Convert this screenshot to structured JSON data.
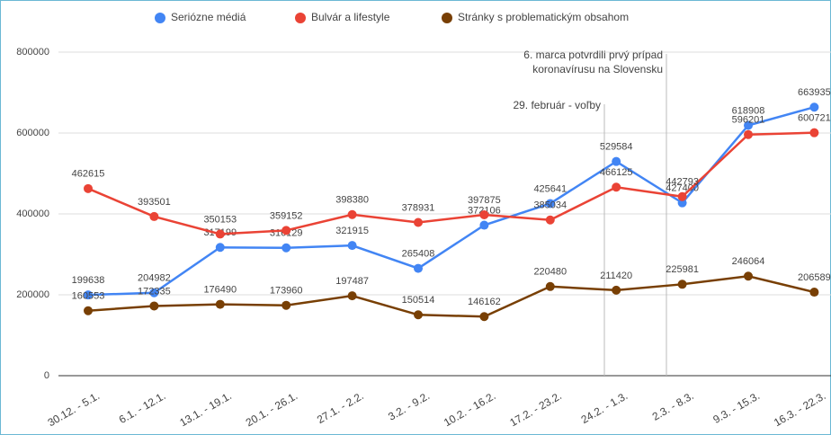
{
  "chart_data": {
    "type": "line",
    "categories": [
      "30.12. - 5.1.",
      "6.1. - 12.1.",
      "13.1. - 19.1.",
      "20.1. - 26.1.",
      "27.1. - 2.2.",
      "3.2. - 9.2.",
      "10.2. - 16.2.",
      "17.2. - 23.2.",
      "24.2. - 1.3.",
      "2.3. - 8.3.",
      "9.3. - 15.3.",
      "16.3. - 22.3."
    ],
    "series": [
      {
        "name": "Seriózne médiá",
        "color": "#4285f4",
        "values": [
          199638,
          204982,
          317199,
          316129,
          321915,
          265408,
          372106,
          425641,
          529584,
          427400,
          618908,
          663935
        ]
      },
      {
        "name": "Bulvár a lifestyle",
        "color": "#ea4335",
        "values": [
          462615,
          393501,
          350153,
          359152,
          398380,
          378931,
          397875,
          385034,
          466125,
          442793,
          596201,
          600721
        ]
      },
      {
        "name": "Stránky s problematickým obsahom",
        "color": "#783f04",
        "values": [
          160553,
          172335,
          176490,
          173960,
          197487,
          150514,
          146162,
          220480,
          211420,
          225981,
          246064,
          206589
        ]
      }
    ],
    "annotations": [
      {
        "text": [
          "29. február - voľby"
        ]
      },
      {
        "text": [
          "6. marca potvrdili prvý prípad",
          "koronavírusu na Slovensku"
        ]
      }
    ],
    "ylim": [
      0,
      800000
    ],
    "yticks": [
      0,
      200000,
      400000,
      600000,
      800000
    ],
    "grid": true,
    "legend": "top"
  }
}
